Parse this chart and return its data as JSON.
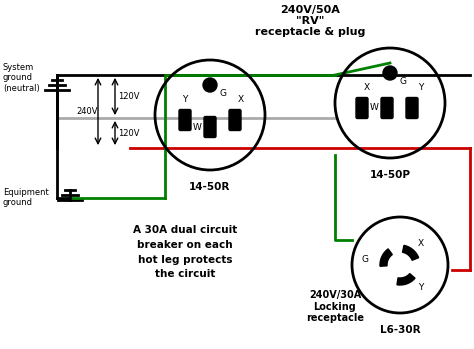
{
  "bg_color": "#ffffff",
  "title1": "240V/50A",
  "title2": "\"RV\"",
  "title3": "receptacle & plug",
  "label_1450R": "14-50R",
  "label_1450P": "14-50P",
  "label_L630R": "L6-30R",
  "label_240v30a": "240V/30A\nLocking\nreceptacle",
  "text_breaker": "A 30A dual circuit\nbreaker on each\nhot leg protects\nthe circuit",
  "label_sys_ground": "System\nground\n(neutral)",
  "label_eq_ground": "Equipment\nground",
  "label_120v_top": "120V",
  "label_120v_bot": "120V",
  "label_240v": "240V",
  "wire_black": "#000000",
  "wire_red": "#cc0000",
  "wire_green": "#008000",
  "wire_gray": "#aaaaaa"
}
